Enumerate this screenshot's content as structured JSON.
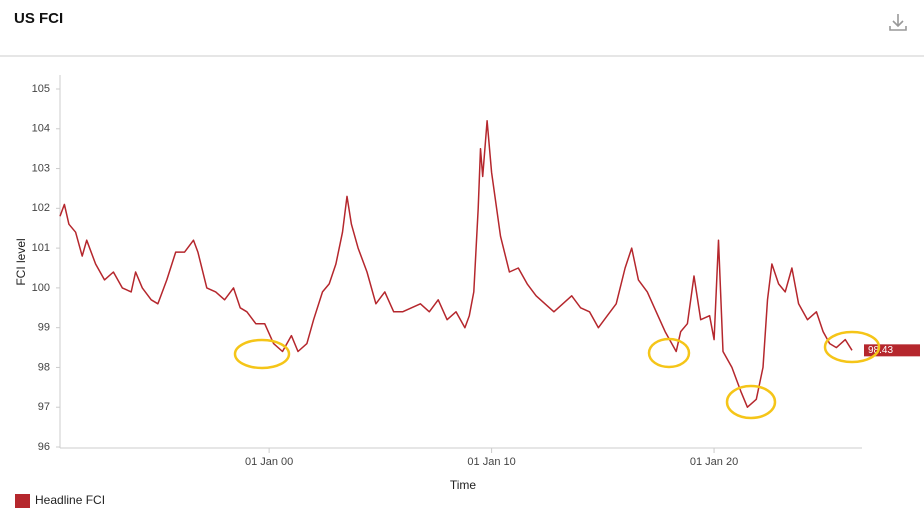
{
  "chart_data": {
    "type": "line",
    "title": "US FCI",
    "y_label": "FCI level",
    "x_label": "Time",
    "xlim": [
      1990.6,
      2026.65
    ],
    "ylim": [
      96,
      105
    ],
    "xticks": [
      {
        "value": 2000,
        "label": "01 Jan 00"
      },
      {
        "value": 2010,
        "label": "01 Jan 10"
      },
      {
        "value": 2020,
        "label": "01 Jan 20"
      }
    ],
    "yticks": [
      96,
      97,
      98,
      99,
      100,
      101,
      102,
      103,
      104,
      105
    ],
    "last_value": 98.43,
    "x": [
      1990.6,
      1990.8,
      1991.0,
      1991.3,
      1991.6,
      1991.8,
      1992.2,
      1992.6,
      1993.0,
      1993.4,
      1993.8,
      1994.0,
      1994.3,
      1994.7,
      1995.0,
      1995.4,
      1995.8,
      1996.2,
      1996.6,
      1996.8,
      1997.2,
      1997.6,
      1998.0,
      1998.4,
      1998.7,
      1999.0,
      1999.4,
      1999.8,
      2000.2,
      2000.6,
      2001.0,
      2001.3,
      2001.7,
      2002.0,
      2002.4,
      2002.7,
      2003.0,
      2003.3,
      2003.5,
      2003.7,
      2004.0,
      2004.4,
      2004.8,
      2005.2,
      2005.6,
      2006.0,
      2006.4,
      2006.8,
      2007.2,
      2007.6,
      2008.0,
      2008.4,
      2008.8,
      2009.0,
      2009.2,
      2009.4,
      2009.5,
      2009.6,
      2009.8,
      2010.0,
      2010.4,
      2010.8,
      2011.2,
      2011.6,
      2012.0,
      2012.4,
      2012.8,
      2013.2,
      2013.6,
      2014.0,
      2014.4,
      2014.8,
      2015.2,
      2015.6,
      2016.0,
      2016.3,
      2016.6,
      2017.0,
      2017.4,
      2017.8,
      2018.1,
      2018.3,
      2018.5,
      2018.8,
      2019.1,
      2019.4,
      2019.8,
      2020.0,
      2020.2,
      2020.4,
      2020.8,
      2021.2,
      2021.5,
      2021.9,
      2022.2,
      2022.4,
      2022.6,
      2022.9,
      2023.2,
      2023.5,
      2023.8,
      2024.2,
      2024.6,
      2024.9,
      2025.2,
      2025.5,
      2025.9,
      2026.2
    ],
    "series": [
      {
        "name": "Headline FCI",
        "color": "#b5272d",
        "values": [
          101.8,
          102.1,
          101.6,
          101.4,
          100.8,
          101.2,
          100.6,
          100.2,
          100.4,
          100.0,
          99.9,
          100.4,
          100.0,
          99.7,
          99.6,
          100.2,
          100.9,
          100.9,
          101.2,
          100.9,
          100.0,
          99.9,
          99.7,
          100.0,
          99.5,
          99.4,
          99.1,
          99.1,
          98.6,
          98.4,
          98.8,
          98.4,
          98.6,
          99.2,
          99.9,
          100.1,
          100.6,
          101.4,
          102.3,
          101.6,
          101.0,
          100.4,
          99.6,
          99.9,
          99.4,
          99.4,
          99.5,
          99.6,
          99.4,
          99.7,
          99.2,
          99.4,
          99.0,
          99.3,
          99.9,
          102.0,
          103.5,
          102.8,
          104.2,
          102.9,
          101.3,
          100.4,
          100.5,
          100.1,
          99.8,
          99.6,
          99.4,
          99.6,
          99.8,
          99.5,
          99.4,
          99.0,
          99.3,
          99.6,
          100.5,
          101.0,
          100.2,
          99.9,
          99.4,
          98.9,
          98.6,
          98.4,
          98.9,
          99.1,
          100.3,
          99.2,
          99.3,
          98.7,
          101.2,
          98.4,
          98.0,
          97.4,
          97.0,
          97.2,
          98.0,
          99.7,
          100.6,
          100.1,
          99.9,
          100.5,
          99.6,
          99.2,
          99.4,
          98.9,
          98.6,
          98.5,
          98.7,
          98.43
        ]
      }
    ]
  }
}
